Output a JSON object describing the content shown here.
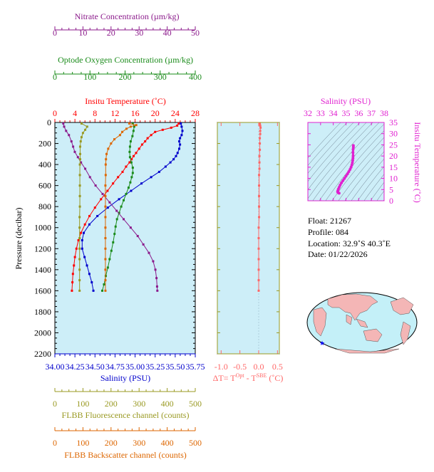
{
  "colors": {
    "nitrate": "#8b1a8b",
    "oxygen": "#1a8b1a",
    "temperature": "#ff0000",
    "salinity": "#0000cc",
    "fluorescence": "#999922",
    "backscatter": "#dd6600",
    "delta_t": "#ff6666",
    "ts_magenta": "#e020d0",
    "panel_bg": "#cdeef8"
  },
  "chart_data": [
    {
      "type": "line",
      "id": "main_profile",
      "ylabel": "Pressure (decibar)",
      "ylim": [
        2200,
        0
      ],
      "yticks": [
        "0",
        "200",
        "400",
        "600",
        "800",
        "1000",
        "1200",
        "1400",
        "1600",
        "1800",
        "2000",
        "2200"
      ],
      "axes": {
        "nitrate": {
          "label": "Nitrate Concentration (µm/kg)",
          "ticks": [
            "0",
            "10",
            "20",
            "30",
            "40",
            "50"
          ],
          "lim": [
            0,
            50
          ]
        },
        "oxygen": {
          "label": "Optode Oxygen Concentration (µm/kg)",
          "ticks": [
            "0",
            "100",
            "200",
            "300",
            "400"
          ],
          "lim": [
            0,
            400
          ]
        },
        "temperature": {
          "label": "Insitu Temperature (˚C)",
          "ticks": [
            "0",
            "4",
            "8",
            "12",
            "16",
            "20",
            "24",
            "28"
          ],
          "lim": [
            0,
            28
          ]
        },
        "salinity": {
          "label": "Salinity (PSU)",
          "ticks": [
            "34.00",
            "34.25",
            "34.50",
            "34.75",
            "35.00",
            "35.25",
            "35.50",
            "35.75"
          ],
          "lim": [
            34.0,
            35.75
          ]
        },
        "fluorescence": {
          "label": "FLBB Fluorescence channel (counts)",
          "ticks": [
            "0",
            "100",
            "200",
            "300",
            "400",
            "500"
          ],
          "lim": [
            0,
            500
          ]
        },
        "backscatter": {
          "label": "FLBB Backscatter channel (counts)",
          "ticks": [
            "0",
            "100",
            "200",
            "300",
            "400",
            "500"
          ],
          "lim": [
            0,
            500
          ]
        }
      },
      "series": [
        {
          "name": "Insitu Temperature",
          "axis": "temperature",
          "points": [
            [
              24.7,
              10
            ],
            [
              24.4,
              30
            ],
            [
              23.2,
              50
            ],
            [
              21.5,
              70
            ],
            [
              20.0,
              90
            ],
            [
              19.2,
              120
            ],
            [
              18.5,
              150
            ],
            [
              18.0,
              180
            ],
            [
              17.4,
              210
            ],
            [
              16.8,
              250
            ],
            [
              16.2,
              290
            ],
            [
              15.7,
              320
            ],
            [
              15.3,
              350
            ],
            [
              14.9,
              380
            ],
            [
              14.2,
              420
            ],
            [
              13.5,
              470
            ],
            [
              12.6,
              520
            ],
            [
              11.6,
              580
            ],
            [
              10.5,
              650
            ],
            [
              9.2,
              730
            ],
            [
              8.0,
              810
            ],
            [
              6.9,
              890
            ],
            [
              6.0,
              970
            ],
            [
              5.2,
              1050
            ],
            [
              4.7,
              1120
            ],
            [
              4.3,
              1200
            ],
            [
              4.0,
              1280
            ],
            [
              3.8,
              1360
            ],
            [
              3.6,
              1440
            ],
            [
              3.5,
              1520
            ],
            [
              3.4,
              1600
            ]
          ]
        },
        {
          "name": "Salinity",
          "axis": "salinity",
          "points": [
            [
              35.57,
              10
            ],
            [
              35.58,
              40
            ],
            [
              35.59,
              80
            ],
            [
              35.58,
              120
            ],
            [
              35.56,
              150
            ],
            [
              35.55,
              180
            ],
            [
              35.56,
              210
            ],
            [
              35.55,
              250
            ],
            [
              35.53,
              290
            ],
            [
              35.51,
              320
            ],
            [
              35.48,
              350
            ],
            [
              35.44,
              380
            ],
            [
              35.38,
              420
            ],
            [
              35.3,
              470
            ],
            [
              35.2,
              520
            ],
            [
              35.08,
              580
            ],
            [
              34.95,
              650
            ],
            [
              34.8,
              730
            ],
            [
              34.66,
              810
            ],
            [
              34.53,
              890
            ],
            [
              34.43,
              970
            ],
            [
              34.36,
              1050
            ],
            [
              34.34,
              1120
            ],
            [
              34.34,
              1200
            ],
            [
              34.37,
              1280
            ],
            [
              34.4,
              1360
            ],
            [
              34.43,
              1440
            ],
            [
              34.46,
              1520
            ],
            [
              34.48,
              1600
            ]
          ]
        },
        {
          "name": "Oxygen",
          "axis": "oxygen",
          "points": [
            [
              222,
              10
            ],
            [
              226,
              40
            ],
            [
              224,
              80
            ],
            [
              221,
              130
            ],
            [
              216,
              180
            ],
            [
              214,
              230
            ],
            [
              213,
              280
            ],
            [
              214,
              330
            ],
            [
              218,
              380
            ],
            [
              222,
              430
            ],
            [
              222,
              480
            ],
            [
              219,
              520
            ],
            [
              215,
              570
            ],
            [
              210,
              620
            ],
            [
              203,
              680
            ],
            [
              196,
              740
            ],
            [
              189,
              800
            ],
            [
              183,
              860
            ],
            [
              177,
              920
            ],
            [
              173,
              990
            ],
            [
              170,
              1060
            ],
            [
              166,
              1140
            ],
            [
              161,
              1220
            ],
            [
              156,
              1300
            ],
            [
              151,
              1380
            ],
            [
              145,
              1460
            ],
            [
              140,
              1540
            ],
            [
              135,
              1600
            ]
          ]
        },
        {
          "name": "Nitrate",
          "axis": "nitrate",
          "points": [
            [
              3.0,
              10
            ],
            [
              3.3,
              40
            ],
            [
              4.0,
              80
            ],
            [
              5.0,
              120
            ],
            [
              5.9,
              180
            ],
            [
              6.5,
              230
            ],
            [
              7.1,
              280
            ],
            [
              8.2,
              330
            ],
            [
              9.3,
              380
            ],
            [
              10.8,
              440
            ],
            [
              12.5,
              520
            ],
            [
              14.5,
              600
            ],
            [
              17.0,
              680
            ],
            [
              19.5,
              760
            ],
            [
              22.0,
              840
            ],
            [
              24.5,
              920
            ],
            [
              27.0,
              1000
            ],
            [
              29.5,
              1080
            ],
            [
              31.5,
              1160
            ],
            [
              33.5,
              1240
            ],
            [
              35.0,
              1320
            ],
            [
              35.8,
              1400
            ],
            [
              36.2,
              1480
            ],
            [
              36.4,
              1560
            ],
            [
              36.5,
              1600
            ]
          ]
        },
        {
          "name": "Fluorescence",
          "axis": "fluorescence",
          "points": [
            [
              95,
              10
            ],
            [
              115,
              40
            ],
            [
              108,
              70
            ],
            [
              100,
              100
            ],
            [
              95,
              140
            ],
            [
              92,
              180
            ],
            [
              90,
              230
            ],
            [
              90,
              300
            ],
            [
              90,
              350
            ],
            [
              89,
              400
            ],
            [
              89,
              500
            ],
            [
              89,
              600
            ],
            [
              89,
              700
            ],
            [
              89,
              800
            ],
            [
              88,
              900
            ],
            [
              88,
              1000
            ],
            [
              88,
              1100
            ],
            [
              88,
              1200
            ],
            [
              88,
              1300
            ],
            [
              88,
              1400
            ],
            [
              88,
              1500
            ],
            [
              88,
              1600
            ]
          ]
        },
        {
          "name": "Backscatter",
          "axis": "backscatter",
          "points": [
            [
              265,
              10
            ],
            [
              290,
              25
            ],
            [
              270,
              40
            ],
            [
              255,
              60
            ],
            [
              240,
              90
            ],
            [
              232,
              120
            ],
            [
              212,
              160
            ],
            [
              200,
              200
            ],
            [
              190,
              250
            ],
            [
              184,
              300
            ],
            [
              182,
              350
            ],
            [
              181,
              400
            ],
            [
              181,
              500
            ],
            [
              180,
              600
            ],
            [
              180,
              700
            ],
            [
              180,
              800
            ],
            [
              180,
              900
            ],
            [
              180,
              1000
            ],
            [
              180,
              1100
            ],
            [
              180,
              1200
            ],
            [
              180,
              1300
            ],
            [
              180,
              1400
            ],
            [
              180,
              1500
            ],
            [
              180,
              1600
            ]
          ]
        }
      ]
    },
    {
      "type": "line",
      "id": "delta_t",
      "xlabel_main": "ΔT= T",
      "xlabel_sup1": "Opt",
      "xlabel_mid": " - T",
      "xlabel_sup2": "SBE",
      "xlabel_end": " (˚C)",
      "xticks": [
        "-1.0",
        "-0.5",
        "0.0",
        "0.5"
      ],
      "xlim": [
        -1.1,
        0.55
      ],
      "ylim": [
        2200,
        0
      ],
      "series": [
        {
          "name": "ΔT",
          "points": [
            [
              0.03,
              10
            ],
            [
              0.04,
              30
            ],
            [
              0.05,
              50
            ],
            [
              0.04,
              80
            ],
            [
              0.04,
              110
            ],
            [
              0.03,
              150
            ],
            [
              0.03,
              200
            ],
            [
              0.03,
              260
            ],
            [
              0.02,
              320
            ],
            [
              0.02,
              380
            ],
            [
              0.02,
              440
            ],
            [
              0.01,
              500
            ],
            [
              0.01,
              600
            ],
            [
              0.01,
              700
            ],
            [
              0.01,
              800
            ],
            [
              0.01,
              900
            ],
            [
              0.0,
              1000
            ],
            [
              0.0,
              1100
            ],
            [
              0.0,
              1200
            ],
            [
              0.0,
              1300
            ],
            [
              0.0,
              1400
            ],
            [
              0.0,
              1500
            ],
            [
              0.0,
              1600
            ]
          ]
        }
      ]
    },
    {
      "type": "scatter",
      "id": "ts_diagram",
      "title": "Salinity (PSU)",
      "ylabel": "Insitu Temperature (˚C)",
      "xticks": [
        "32",
        "33",
        "34",
        "35",
        "36",
        "37",
        "38"
      ],
      "yticks": [
        "0",
        "5",
        "10",
        "15",
        "20",
        "25",
        "30",
        "35"
      ],
      "xlim": [
        32,
        38
      ],
      "ylim": [
        0,
        35
      ],
      "series": [
        {
          "name": "T-S profile",
          "points": [
            [
              35.58,
              24.7
            ],
            [
              35.58,
              24.0
            ],
            [
              35.56,
              23.0
            ],
            [
              35.55,
              21.5
            ],
            [
              35.56,
              20.0
            ],
            [
              35.55,
              19.0
            ],
            [
              35.53,
              18.0
            ],
            [
              35.5,
              17.0
            ],
            [
              35.46,
              16.0
            ],
            [
              35.4,
              15.0
            ],
            [
              35.32,
              14.0
            ],
            [
              35.22,
              13.0
            ],
            [
              35.12,
              12.0
            ],
            [
              35.0,
              11.0
            ],
            [
              34.88,
              10.0
            ],
            [
              34.76,
              9.0
            ],
            [
              34.64,
              8.0
            ],
            [
              34.54,
              7.0
            ],
            [
              34.46,
              6.0
            ],
            [
              34.4,
              5.2
            ],
            [
              34.36,
              4.5
            ],
            [
              34.34,
              4.0
            ],
            [
              34.38,
              3.6
            ],
            [
              34.46,
              3.4
            ]
          ]
        }
      ]
    }
  ],
  "info": {
    "float": "Float:  21267",
    "profile": "Profile:  084",
    "location": "Location:  32.9˚S  40.3˚E",
    "date": "Date:  01/22/2026"
  }
}
